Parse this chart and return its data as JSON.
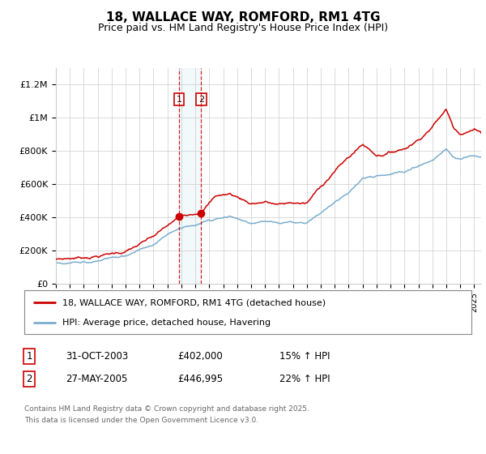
{
  "title": "18, WALLACE WAY, ROMFORD, RM1 4TG",
  "subtitle": "Price paid vs. HM Land Registry's House Price Index (HPI)",
  "title_fontsize": 11,
  "subtitle_fontsize": 9,
  "legend_line1": "18, WALLACE WAY, ROMFORD, RM1 4TG (detached house)",
  "legend_line2": "HPI: Average price, detached house, Havering",
  "red_color": "#cc0000",
  "blue_color": "#7aadce",
  "transaction1_date": "31-OCT-2003",
  "transaction1_price": 402000,
  "transaction1_pct": "15%",
  "transaction2_date": "27-MAY-2005",
  "transaction2_price": 446995,
  "transaction2_pct": "22%",
  "footnote1": "Contains HM Land Registry data © Crown copyright and database right 2025.",
  "footnote2": "This data is licensed under the Open Government Licence v3.0.",
  "ylim": [
    0,
    1300000
  ],
  "yticks": [
    0,
    200000,
    400000,
    600000,
    800000,
    1000000,
    1200000
  ],
  "ytick_labels": [
    "£0",
    "£200K",
    "£400K",
    "£600K",
    "£800K",
    "£1M",
    "£1.2M"
  ],
  "x_start_year": 1995,
  "x_end_year": 2025,
  "background_color": "#ffffff",
  "grid_color": "#cccccc",
  "transaction1_x": 2003.83,
  "transaction2_x": 2005.41
}
